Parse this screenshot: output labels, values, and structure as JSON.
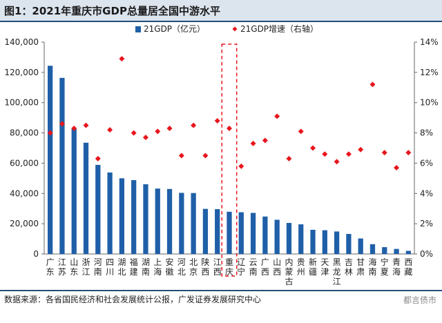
{
  "title": "图1：2021年重庆市GDP总量居全国中游水平",
  "source": "数据来源：各省国民经济和社会发展统计公报，广发证券发展研究中心",
  "watermark": "都言债市",
  "colors": {
    "bar": "#1f5fa8",
    "dot": "#e8161e",
    "highlight": "#e8161e",
    "header_bg": "#dce4ee",
    "rule": "#1f4e79"
  },
  "chart_data": {
    "type": "bar",
    "highlight_category": "重庆",
    "categories": [
      "广东",
      "江苏",
      "山东",
      "浙江",
      "河南",
      "四川",
      "湖北",
      "福建",
      "湖南",
      "上海",
      "安徽",
      "河北",
      "北京",
      "陕西",
      "江西",
      "重庆",
      "辽宁",
      "云南",
      "广西",
      "山西",
      "内蒙古",
      "贵州",
      "新疆",
      "天津",
      "黑龙江",
      "吉林",
      "甘肃",
      "海南",
      "宁夏",
      "青海",
      "西藏"
    ],
    "series": [
      {
        "name": "21GDP（亿元）",
        "axis": "left",
        "type": "bar",
        "values": [
          124370,
          116364,
          83096,
          73516,
          58887,
          53851,
          50013,
          48810,
          46063,
          43215,
          42959,
          40391,
          40270,
          29801,
          29620,
          27894,
          27584,
          27147,
          24741,
          22590,
          20514,
          19586,
          15984,
          15695,
          14859,
          13236,
          10243,
          6475,
          4522,
          3347,
          2080
        ]
      },
      {
        "name": "21GDP增速（右轴）",
        "axis": "right",
        "type": "scatter",
        "values": [
          8.0,
          8.6,
          8.3,
          8.5,
          6.3,
          8.2,
          12.9,
          8.0,
          7.7,
          8.1,
          8.3,
          6.5,
          8.5,
          6.5,
          8.8,
          8.3,
          5.8,
          7.3,
          7.5,
          9.1,
          6.3,
          8.1,
          7.0,
          6.6,
          6.1,
          6.6,
          6.9,
          11.2,
          6.7,
          5.7,
          6.7
        ]
      }
    ],
    "y_left": {
      "min": 0,
      "max": 140000,
      "ticks": [
        "0",
        "20,000",
        "40,000",
        "60,000",
        "80,000",
        "100,000",
        "120,000",
        "140,000"
      ]
    },
    "y_right": {
      "min": 0,
      "max": 14,
      "ticks": [
        "0%",
        "2%",
        "4%",
        "6%",
        "8%",
        "10%",
        "12%",
        "14%"
      ]
    },
    "legend_position": "top",
    "grid": false
  }
}
